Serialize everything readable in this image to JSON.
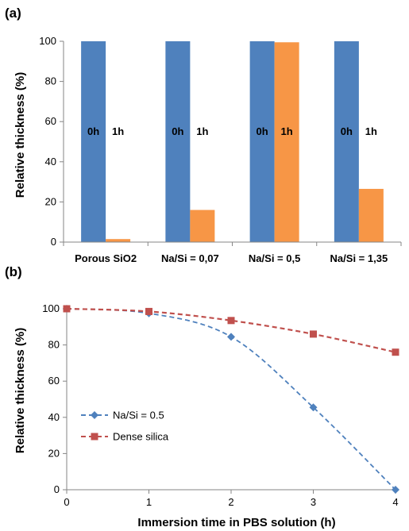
{
  "chart_data": [
    {
      "panel": "(a)",
      "type": "bar",
      "ylabel": "Relative thickness (%)",
      "ylim": [
        0,
        100
      ],
      "yticks": [
        0,
        20,
        40,
        60,
        80,
        100
      ],
      "categories": [
        "Porous SiO2",
        "Na/Si = 0,07",
        "Na/Si = 0,5",
        "Na/Si = 1,35"
      ],
      "series": [
        {
          "name": "0h",
          "color": "#4f81bd",
          "values": [
            100,
            100,
            100,
            100
          ]
        },
        {
          "name": "1h",
          "color": "#f79646",
          "values": [
            1.5,
            16,
            99.5,
            26.5
          ]
        }
      ],
      "bar_labels": [
        "0h",
        "1h"
      ]
    },
    {
      "panel": "(b)",
      "type": "line",
      "xlabel": "Immersion time in PBS solution (h)",
      "ylabel": "Relative thickness (%)",
      "xlim": [
        0,
        4
      ],
      "ylim": [
        0,
        100
      ],
      "xticks": [
        0,
        1,
        2,
        3,
        4
      ],
      "yticks": [
        0,
        20,
        40,
        60,
        80,
        100
      ],
      "legend_position": "left",
      "series": [
        {
          "name": "Na/Si = 0.5",
          "color": "#4f81bd",
          "marker": "diamond",
          "x": [
            0,
            1,
            2,
            3,
            4
          ],
          "y": [
            100,
            97.5,
            84.5,
            45.5,
            0
          ]
        },
        {
          "name": "Dense silica",
          "color": "#c0504d",
          "marker": "square",
          "x": [
            0,
            1,
            2,
            3,
            4
          ],
          "y": [
            100,
            98.5,
            93.5,
            86,
            76
          ]
        }
      ]
    }
  ]
}
